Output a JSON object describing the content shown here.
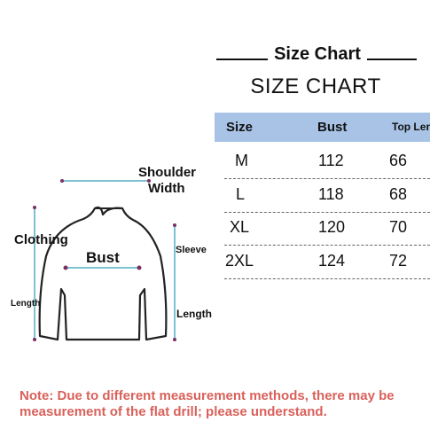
{
  "header": {
    "title": "Size Chart",
    "subtitle": "SIZE CHART"
  },
  "table": {
    "columns": [
      "Size",
      "Bust",
      "Top Len"
    ],
    "rows": [
      [
        "M",
        "112",
        "66"
      ],
      [
        "L",
        "118",
        "68"
      ],
      [
        "XL",
        "120",
        "70"
      ],
      [
        "2XL",
        "124",
        "72"
      ]
    ]
  },
  "diagram": {
    "shoulder_line1": "Shoulder",
    "shoulder_line2": "Width",
    "clothing": "Clothing",
    "clothing_length": "Length",
    "bust": "Bust",
    "sleeve": "Sleeve",
    "sleeve_length": "Length"
  },
  "note": {
    "line1": "Note: Due to different measurement methods, there may be",
    "line2": "measurement of the flat drill; please understand."
  },
  "colors": {
    "header_bg": "#a8c3e6",
    "note_text": "#d9615b",
    "measure_line": "#7a2f63"
  }
}
